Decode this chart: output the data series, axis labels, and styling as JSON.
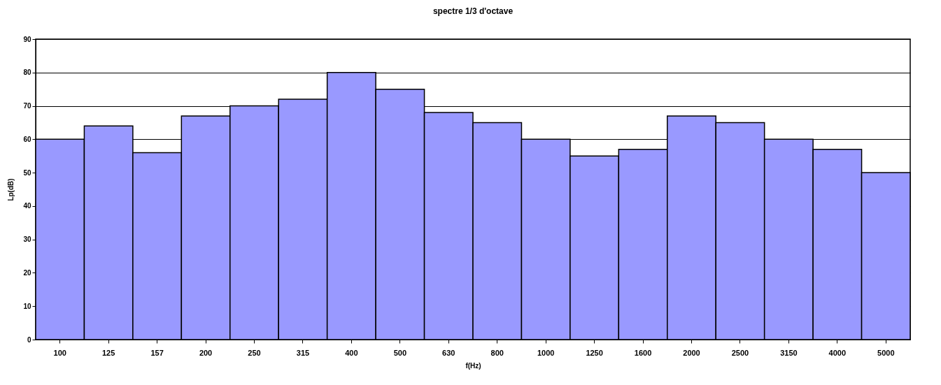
{
  "chart_data": {
    "type": "bar",
    "title": "spectre 1/3 d'octave",
    "xlabel": "f(Hz)",
    "ylabel": "Lp(dB)",
    "categories": [
      "100",
      "125",
      "157",
      "200",
      "250",
      "315",
      "400",
      "500",
      "630",
      "800",
      "1000",
      "1250",
      "1600",
      "2000",
      "2500",
      "3150",
      "4000",
      "5000"
    ],
    "values": [
      60,
      64,
      56,
      67,
      70,
      72,
      80,
      75,
      68,
      65,
      60,
      55,
      57,
      67,
      65,
      60,
      57,
      50
    ],
    "color": "#9999ff",
    "ylim": [
      0,
      90
    ],
    "yticks": [
      0,
      10,
      20,
      30,
      40,
      50,
      60,
      70,
      80,
      90
    ],
    "grid": "y"
  }
}
